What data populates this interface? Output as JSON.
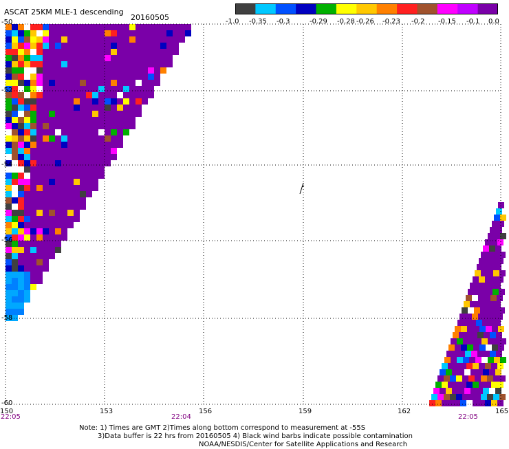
{
  "header": {
    "title": "ASCAT 25KM MLE-1 descending",
    "date": "20160505"
  },
  "legend": {
    "colors": [
      "#404040",
      "#00c8ff",
      "#0050ff",
      "#0000c0",
      "#00b000",
      "#ffff00",
      "#ffc800",
      "#ff8000",
      "#ff2020",
      "#a0522d",
      "#ff00ff",
      "#c000ff",
      "#7a00a8"
    ],
    "labels": [
      "-1.0",
      "-0.35",
      "-0.3",
      "-0.29",
      "-0.28",
      "-0.26",
      "-0.23",
      "-0.2",
      "-0.15",
      "-0.1",
      "0.0"
    ]
  },
  "map": {
    "lat_labels": [
      "-50",
      "-52",
      "-54",
      "-56",
      "-58",
      "-60"
    ],
    "lon_labels": [
      "150",
      "153",
      "156",
      "159",
      "162",
      "165"
    ],
    "time_labels": [
      "22:05",
      "22:04",
      "22:05"
    ]
  },
  "notes": {
    "line1": "Note: 1) Times are GMT 2)Times along bottom correspond to measurement at -55S",
    "line2": "3)Data buffer is 22 hrs from 20160505 4) Black wind barbs indicate possible contamination",
    "line3": "NOAA/NESDIS/Center for Satellite Applications and Research"
  },
  "colors": {
    "purple_swath": "#7a00a8",
    "time_label": "#800080",
    "grid": "#000000"
  }
}
